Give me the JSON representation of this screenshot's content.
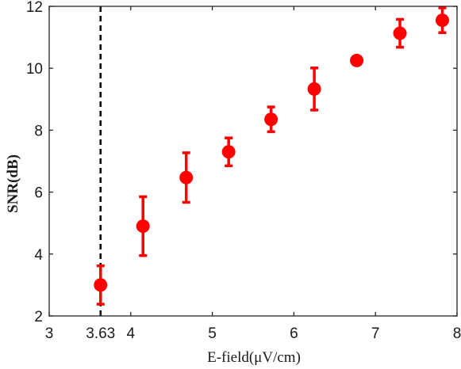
{
  "chart_data": {
    "type": "scatter",
    "title": "",
    "xlabel": "E-field(μV/cm)",
    "ylabel": "SNR(dB)",
    "xlim": [
      3,
      8
    ],
    "ylim": [
      2,
      12
    ],
    "xticks": [
      3,
      3.63,
      4,
      5,
      6,
      7,
      8
    ],
    "xtick_labels": [
      "3",
      "3.63",
      "4",
      "5",
      "6",
      "7",
      "8"
    ],
    "yticks": [
      2,
      4,
      6,
      8,
      10,
      12
    ],
    "ytick_labels": [
      "2",
      "4",
      "6",
      "8",
      "10",
      "12"
    ],
    "grid": false,
    "legend": "none",
    "marker_color": "#ff0000",
    "vline": {
      "x": 3.63,
      "style": "dashed",
      "color": "#000000"
    },
    "series": [
      {
        "x": [
          3.63,
          4.15,
          4.68,
          5.2,
          5.72,
          6.25,
          6.77,
          7.3,
          7.82
        ],
        "y": [
          3.0,
          4.9,
          6.47,
          7.3,
          8.35,
          9.33,
          10.25,
          11.13,
          11.55
        ],
        "err_low": [
          0.62,
          0.95,
          0.8,
          0.45,
          0.4,
          0.68,
          0,
          0.45,
          0.4
        ],
        "err_high": [
          0.62,
          0.95,
          0.8,
          0.45,
          0.4,
          0.68,
          0,
          0.45,
          0.4
        ]
      }
    ]
  }
}
